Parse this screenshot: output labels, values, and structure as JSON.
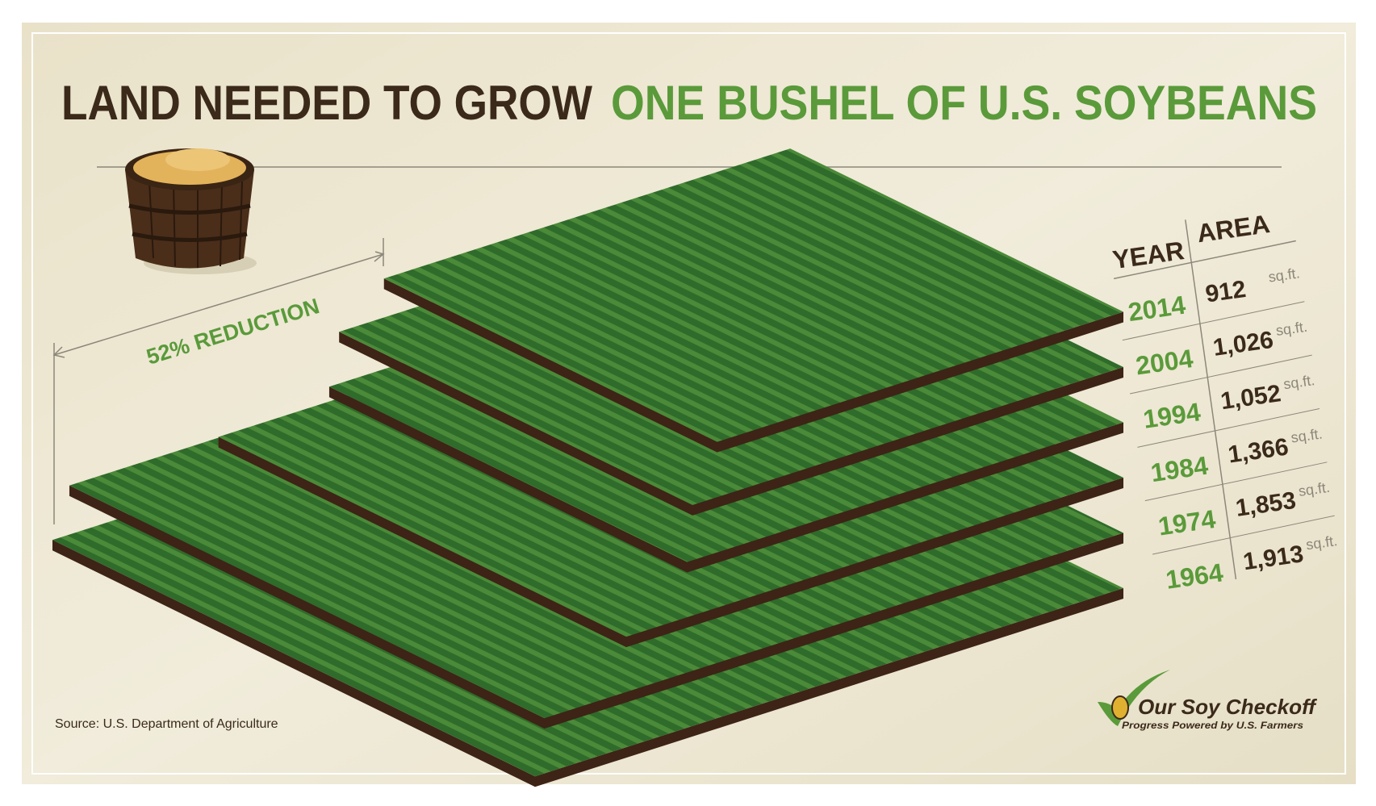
{
  "chart_data": {
    "type": "plates",
    "title": [
      "LAND NEEDED TO GROW",
      "ONE BUSHEL OF U.S. SOYBEANS"
    ],
    "annotation": "52% REDUCTION",
    "column_headers": [
      "YEAR",
      "AREA"
    ],
    "categories": [
      "2014",
      "2004",
      "1994",
      "1984",
      "1974",
      "1964"
    ],
    "values": [
      912,
      1026,
      1052,
      1366,
      1853,
      1913
    ],
    "value_labels": [
      "912",
      "1,026",
      "1,052",
      "1,366",
      "1,853",
      "1,913"
    ],
    "unit": "sq.ft.",
    "source": "Source: U.S. Department of Agriculture",
    "logo": [
      "Our Soy Checkoff",
      "Progress Powered by U.S. Farmers"
    ]
  }
}
